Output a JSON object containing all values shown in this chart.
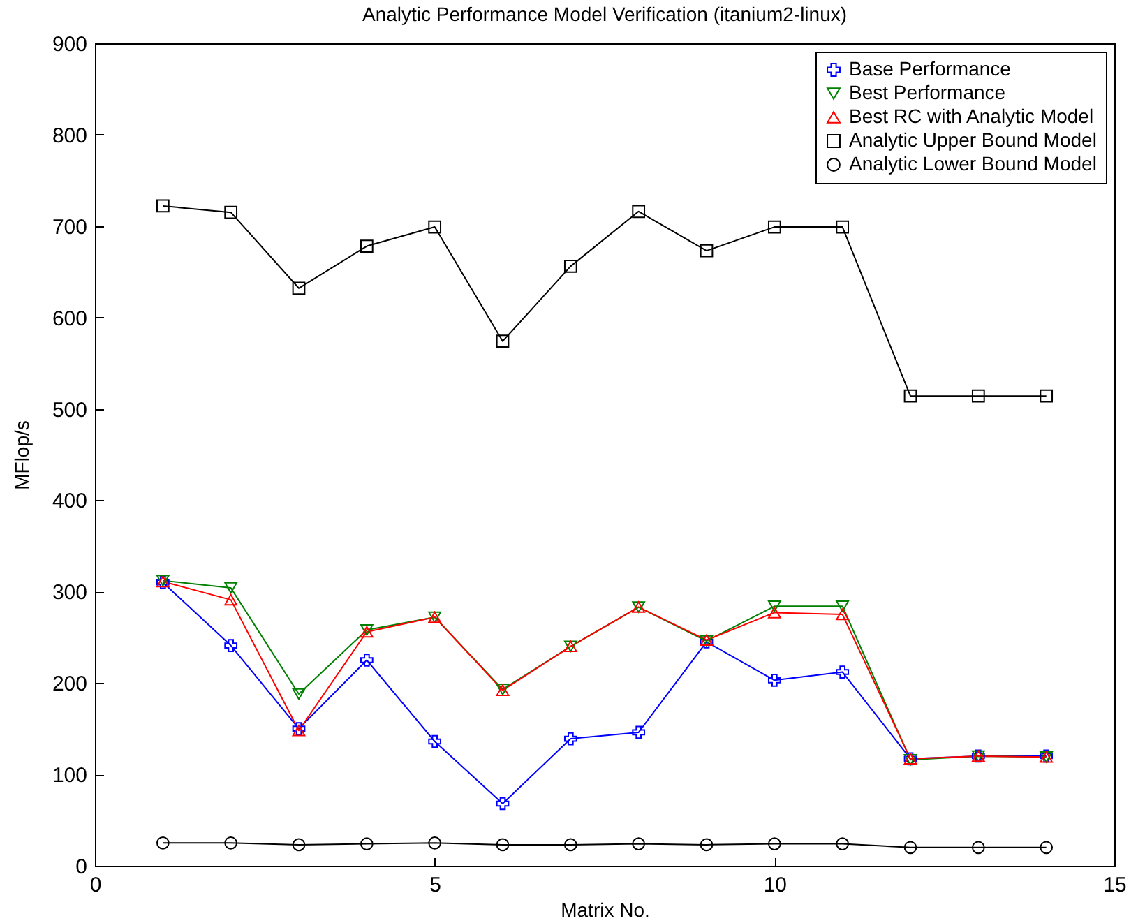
{
  "chart_data": {
    "type": "line",
    "title": "Analytic Performance Model Verification (itanium2-linux)",
    "xlabel": "Matrix No.",
    "ylabel": "MFlop/s",
    "x": [
      1,
      2,
      3,
      4,
      5,
      6,
      7,
      8,
      9,
      10,
      11,
      12,
      13,
      14
    ],
    "series": [
      {
        "name": "Base Performance",
        "color": "#0000ff",
        "marker": "cross",
        "values": [
          310,
          241,
          150,
          225,
          136,
          68,
          139,
          146,
          245,
          203,
          212,
          117,
          120,
          120
        ]
      },
      {
        "name": "Best Performance",
        "color": "#008000",
        "marker": "triangle-down",
        "values": [
          312,
          304,
          188,
          258,
          272,
          193,
          240,
          283,
          246,
          284,
          284,
          116,
          120,
          119
        ]
      },
      {
        "name": "Best RC with Analytic Model",
        "color": "#ff0000",
        "marker": "triangle",
        "values": [
          311,
          291,
          148,
          256,
          272,
          192,
          240,
          283,
          247,
          277,
          275,
          117,
          120,
          119
        ]
      },
      {
        "name": "Analytic Upper Bound Model",
        "color": "#000000",
        "marker": "square",
        "values": [
          722,
          715,
          632,
          678,
          699,
          574,
          656,
          716,
          673,
          699,
          699,
          514,
          514,
          514
        ]
      },
      {
        "name": "Analytic Lower Bound Model",
        "color": "#000000",
        "marker": "circle",
        "values": [
          25,
          25,
          23,
          24,
          25,
          23,
          23,
          24,
          23,
          24,
          24,
          20,
          20,
          20
        ]
      }
    ],
    "xlim": [
      0,
      15
    ],
    "xticks": [
      0,
      5,
      10,
      15
    ],
    "ylim": [
      0,
      900
    ],
    "yticks": [
      0,
      100,
      200,
      300,
      400,
      500,
      600,
      700,
      800,
      900
    ],
    "grid": false,
    "legend": "top right",
    "line_style": "solid"
  }
}
